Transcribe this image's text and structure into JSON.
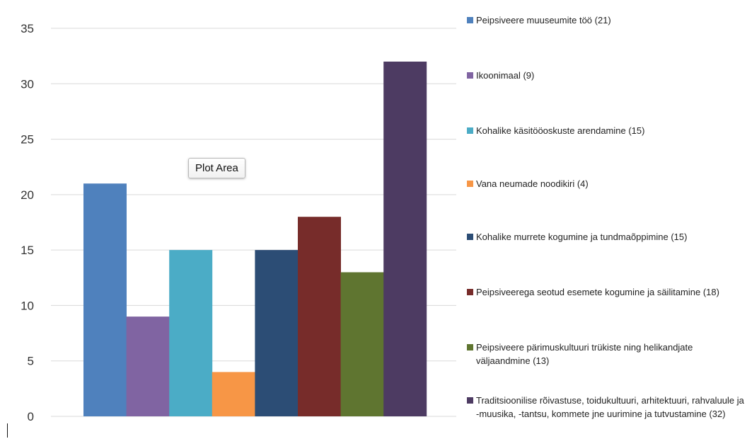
{
  "tooltip": "Plot Area",
  "chart_data": {
    "type": "bar",
    "title": "",
    "xlabel": "",
    "ylabel": "",
    "ylim": [
      0,
      35
    ],
    "yticks": [
      0,
      5,
      10,
      15,
      20,
      25,
      30,
      35
    ],
    "grid": true,
    "legend_position": "right",
    "series": [
      {
        "name": "Peipsiveere muuseumite töö (21)",
        "value": 21,
        "color": "#4f81bd"
      },
      {
        "name": "Ikoonimaal (9)",
        "value": 9,
        "color": "#8064a2"
      },
      {
        "name": "Kohalike käsitööoskuste arendamine (15)",
        "value": 15,
        "color": "#4bacc6"
      },
      {
        "name": "Vana neumade noodikiri (4)",
        "value": 4,
        "color": "#f79646"
      },
      {
        "name": "Kohalike murrete kogumine ja tundmaõppimine (15)",
        "value": 15,
        "color": "#2c4d75"
      },
      {
        "name": "Peipsiveerega seotud esemete kogumine ja säilitamine (18)",
        "value": 18,
        "color": "#772c2a"
      },
      {
        "name": "Peipsiveere pärimuskultuuri trükiste ning helikandjate väljaandmine (13)",
        "value": 13,
        "color": "#5f7530"
      },
      {
        "name": "Traditsioonilise rõivastuse, toidukultuuri, arhitektuuri, rahvaluule ja -muusika, -tantsu, kommete jne uurimine ja tutvustamine (32)",
        "value": 32,
        "color": "#4d3b62"
      }
    ]
  }
}
